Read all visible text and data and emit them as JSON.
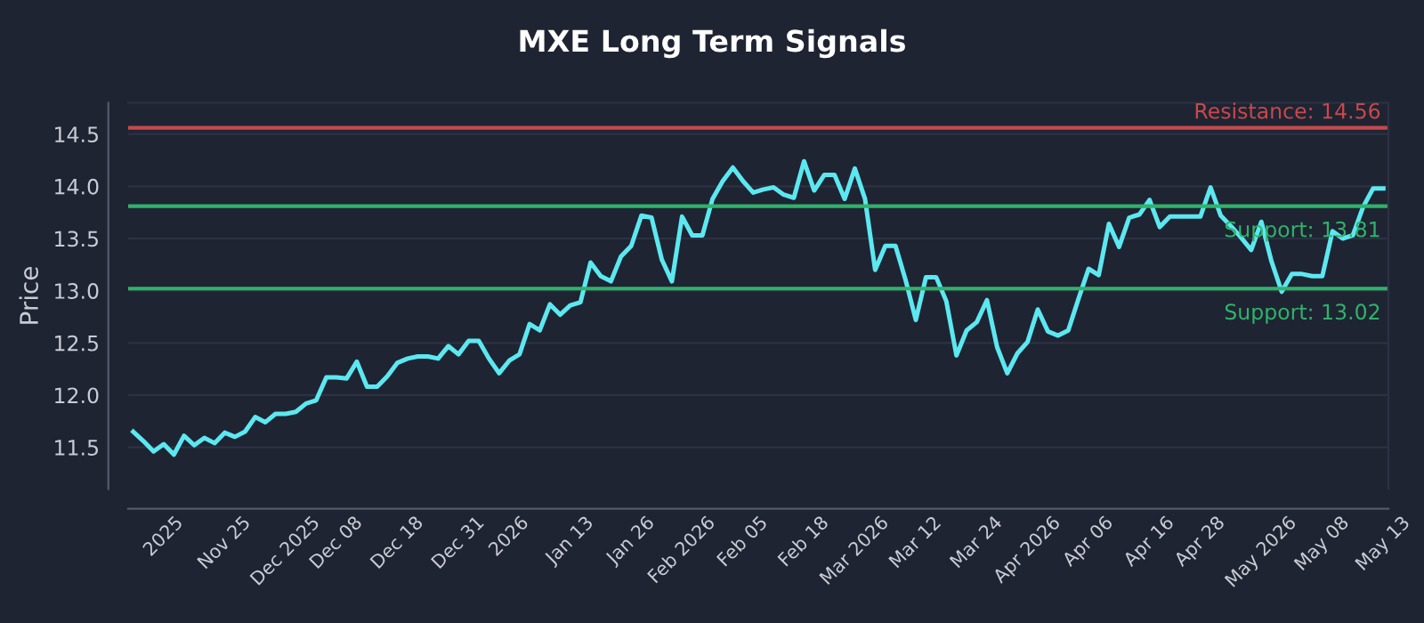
{
  "chart_data": {
    "type": "line",
    "title": "MXE Long Term Signals",
    "ylabel": "Price",
    "categories": [
      null,
      null,
      null,
      "2025",
      null,
      null,
      null,
      null,
      null,
      "Nov 25",
      null,
      null,
      null,
      null,
      null,
      "Dec 2025",
      null,
      null,
      null,
      null,
      "Dec 08",
      null,
      null,
      null,
      null,
      null,
      "Dec 18",
      null,
      null,
      null,
      null,
      null,
      "Dec 31",
      null,
      null,
      null,
      null,
      "2026",
      null,
      null,
      null,
      null,
      null,
      "Jan 13",
      null,
      null,
      null,
      null,
      null,
      "Jan 26",
      null,
      null,
      null,
      null,
      "Feb 2026",
      null,
      null,
      null,
      null,
      null,
      "Feb 05",
      null,
      null,
      null,
      null,
      null,
      "Feb 18",
      null,
      null,
      null,
      null,
      "Mar 2026",
      null,
      null,
      null,
      null,
      null,
      "Mar 12",
      null,
      null,
      null,
      null,
      null,
      "Mar 24",
      null,
      null,
      null,
      null,
      "Apr 2026",
      null,
      null,
      null,
      null,
      null,
      "Apr 06",
      null,
      null,
      null,
      null,
      null,
      "Apr 16",
      null,
      null,
      null,
      null,
      "Apr 28",
      null,
      null,
      null,
      null,
      null,
      "May 2026",
      null,
      null,
      null,
      null,
      null,
      "May 08",
      null,
      null,
      null,
      null,
      null,
      "May 13"
    ],
    "series": [
      {
        "color": "#5ce8f0",
        "values": [
          11.65,
          11.56,
          11.46,
          11.53,
          11.43,
          11.61,
          11.52,
          11.59,
          11.54,
          11.64,
          11.6,
          11.65,
          11.79,
          11.74,
          11.82,
          11.82,
          11.84,
          11.92,
          11.95,
          12.17,
          12.17,
          12.16,
          12.32,
          12.08,
          12.08,
          12.18,
          12.31,
          12.35,
          12.37,
          12.37,
          12.35,
          12.47,
          12.39,
          12.52,
          12.52,
          12.35,
          12.21,
          12.33,
          12.39,
          12.68,
          12.62,
          12.87,
          12.77,
          12.86,
          12.89,
          13.27,
          13.14,
          13.09,
          13.33,
          13.43,
          13.72,
          13.7,
          13.3,
          13.09,
          13.71,
          13.53,
          13.53,
          13.88,
          14.05,
          14.18,
          14.05,
          13.94,
          13.97,
          13.99,
          13.92,
          13.89,
          14.24,
          13.96,
          14.11,
          14.11,
          13.88,
          14.17,
          13.88,
          13.2,
          13.43,
          13.43,
          13.1,
          12.72,
          13.13,
          13.13,
          12.9,
          12.38,
          12.62,
          12.7,
          12.91,
          12.46,
          12.21,
          12.4,
          12.51,
          12.82,
          12.61,
          12.57,
          12.62,
          12.92,
          13.21,
          13.15,
          13.64,
          13.42,
          13.7,
          13.73,
          13.87,
          13.61,
          13.71,
          13.71,
          13.71,
          13.71,
          13.99,
          13.72,
          13.62,
          13.51,
          13.39,
          13.66,
          13.28,
          12.99,
          13.16,
          13.16,
          13.14,
          13.14,
          13.57,
          13.5,
          13.53,
          13.8,
          13.98,
          13.98
        ]
      }
    ],
    "ylim": [
      11.1,
      14.8
    ],
    "yticks": [
      11.5,
      {
        "value": 12,
        "label": "12.0"
      },
      12.5,
      {
        "value": 13,
        "label": "13.0"
      },
      13.5,
      {
        "value": 14,
        "label": "14.0"
      },
      14.5
    ],
    "ref_lines": [
      {
        "axis": "y",
        "value": 14.56,
        "label": "Resistance: 14.56",
        "color": "#c9484b"
      },
      {
        "axis": "y",
        "value": 13.81,
        "label": "Support: 13.81",
        "color": "#2fb36a"
      },
      {
        "axis": "y",
        "value": 13.02,
        "label": "Support: 13.02",
        "color": "#2fb36a"
      }
    ],
    "grid": "y",
    "legend": false,
    "marker": "none",
    "line_style": "solid"
  }
}
